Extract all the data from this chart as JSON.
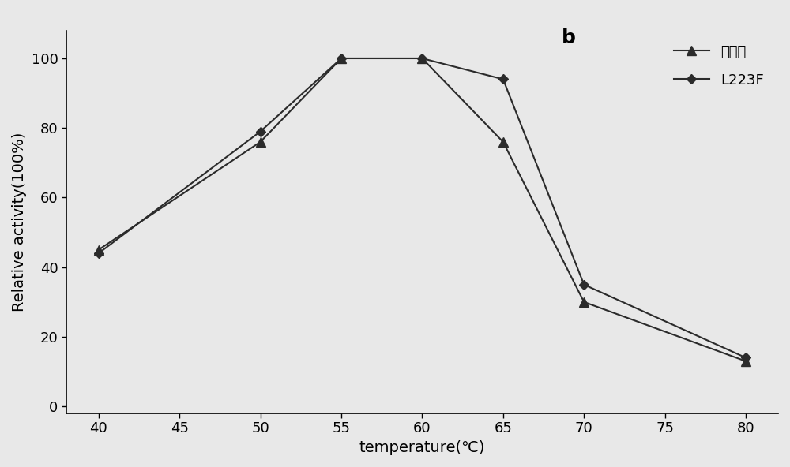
{
  "title": "b",
  "xlabel": "temperature(℃)",
  "ylabel": "Relative activity(100%)",
  "xlim": [
    38,
    82
  ],
  "ylim": [
    -2,
    108
  ],
  "xticks": [
    40,
    45,
    50,
    55,
    60,
    65,
    70,
    75,
    80
  ],
  "yticks": [
    0,
    20,
    40,
    60,
    80,
    100
  ],
  "wild_type": {
    "x": [
      40,
      50,
      55,
      60,
      65,
      70,
      80
    ],
    "y": [
      45,
      76,
      100,
      100,
      76,
      30,
      13
    ],
    "label": "野生型",
    "color": "#2b2b2b",
    "marker": "^",
    "markersize": 9,
    "linewidth": 1.5
  },
  "L223F": {
    "x": [
      40,
      50,
      55,
      60,
      65,
      70,
      80
    ],
    "y": [
      44,
      79,
      100,
      100,
      94,
      35,
      14
    ],
    "label": "L223F",
    "color": "#2b2b2b",
    "marker": "D",
    "markersize": 6,
    "linewidth": 1.5
  },
  "background_color": "#e8e8e8",
  "title_fontsize": 18,
  "label_fontsize": 14,
  "tick_fontsize": 13,
  "legend_fontsize": 13
}
